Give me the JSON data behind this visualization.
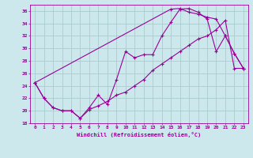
{
  "xlabel": "Windchill (Refroidissement éolien,°C)",
  "bg_color": "#cce8ec",
  "grid_color": "#aacccc",
  "line_color": "#990099",
  "xlim": [
    -0.5,
    23.5
  ],
  "ylim": [
    18,
    37
  ],
  "xticks": [
    0,
    1,
    2,
    3,
    4,
    5,
    6,
    7,
    8,
    9,
    10,
    11,
    12,
    13,
    14,
    15,
    16,
    17,
    18,
    19,
    20,
    21,
    22,
    23
  ],
  "yticks": [
    18,
    20,
    22,
    24,
    26,
    28,
    30,
    32,
    34,
    36
  ],
  "line1_x": [
    0,
    1,
    2,
    3,
    4,
    5,
    6,
    7,
    8,
    9,
    10,
    11,
    12,
    13,
    14,
    15,
    16,
    17,
    18,
    19,
    20,
    21,
    22,
    23
  ],
  "line1_y": [
    24.5,
    22.0,
    20.5,
    20.0,
    20.0,
    18.8,
    20.5,
    22.5,
    21.0,
    25.0,
    29.5,
    28.5,
    29.0,
    29.0,
    32.0,
    34.2,
    36.3,
    36.4,
    35.8,
    34.7,
    29.5,
    32.0,
    29.2,
    26.8
  ],
  "line2_x": [
    0,
    1,
    2,
    3,
    4,
    5,
    6,
    7,
    8,
    9,
    10,
    11,
    12,
    13,
    14,
    15,
    16,
    17,
    18,
    19,
    20,
    21,
    22,
    23
  ],
  "line2_y": [
    24.5,
    22.0,
    20.5,
    20.0,
    20.0,
    18.8,
    20.2,
    20.8,
    21.5,
    22.5,
    23.0,
    24.0,
    25.0,
    26.5,
    27.5,
    28.5,
    29.5,
    30.5,
    31.5,
    32.0,
    33.0,
    34.5,
    26.8,
    26.8
  ],
  "line3_x": [
    0,
    15,
    16,
    17,
    18,
    19,
    20,
    21,
    22,
    23
  ],
  "line3_y": [
    24.5,
    36.3,
    36.4,
    35.8,
    35.5,
    35.0,
    34.7,
    32.0,
    29.2,
    26.8
  ]
}
